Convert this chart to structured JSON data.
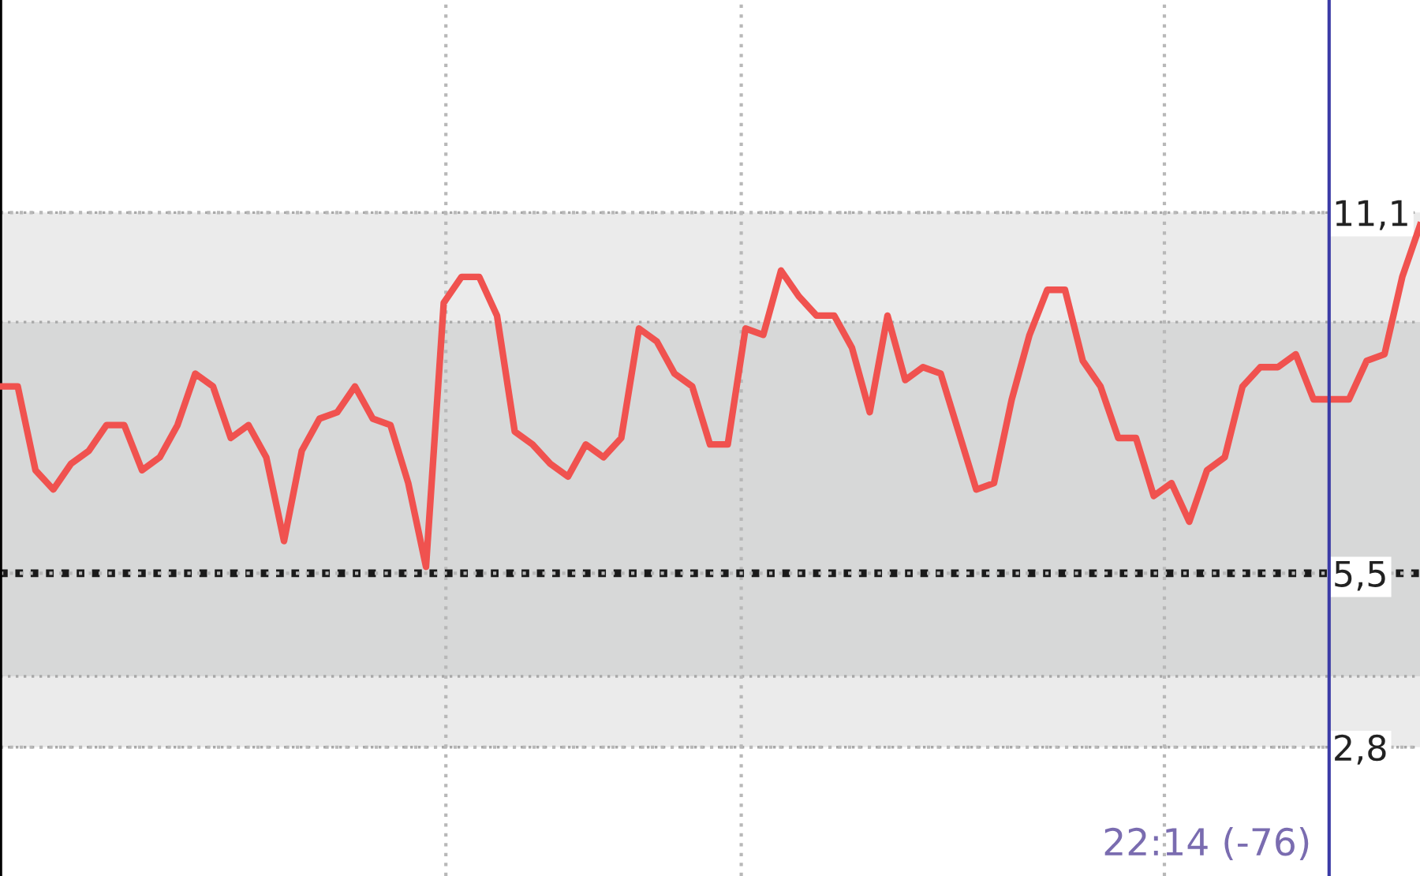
{
  "chart_data": {
    "type": "line",
    "categories": [
      null,
      null,
      null,
      null,
      null,
      null,
      null,
      null,
      null,
      null,
      null,
      null,
      null,
      null,
      null,
      null,
      null,
      null,
      null,
      null,
      null,
      null,
      null,
      null,
      null,
      null,
      null,
      null,
      null,
      null,
      null,
      null,
      null,
      null,
      null,
      null,
      null,
      null,
      null,
      null,
      null,
      null,
      null,
      null,
      null,
      null,
      null,
      null,
      null,
      null,
      null,
      null,
      null,
      null,
      null,
      null,
      null,
      null,
      null,
      null,
      null,
      null,
      null,
      null,
      null,
      null,
      null,
      null,
      null,
      null,
      null,
      null,
      null,
      null,
      null,
      null,
      null,
      null,
      null,
      null,
      null
    ],
    "series": [
      {
        "color": "#f0524f",
        "values": [
          8.4,
          8.4,
          7.1,
          6.8,
          7.2,
          7.4,
          7.8,
          7.8,
          7.1,
          7.3,
          7.8,
          8.6,
          8.4,
          7.6,
          7.8,
          7.3,
          6.0,
          7.4,
          7.9,
          8.0,
          8.4,
          7.9,
          7.8,
          6.9,
          5.6,
          9.7,
          10.1,
          10.1,
          9.5,
          7.7,
          7.5,
          7.2,
          7.0,
          7.5,
          7.3,
          7.6,
          9.3,
          9.1,
          8.6,
          8.4,
          7.5,
          7.5,
          9.3,
          9.2,
          10.2,
          9.8,
          9.5,
          9.5,
          9.0,
          8.0,
          9.5,
          8.5,
          8.7,
          8.6,
          7.7,
          6.8,
          6.9,
          8.2,
          9.2,
          9.9,
          9.9,
          8.8,
          8.4,
          7.6,
          7.6,
          6.7,
          6.9,
          6.3,
          7.1,
          7.3,
          8.4,
          8.7,
          8.7,
          8.9,
          8.2,
          8.2,
          8.2,
          8.8,
          8.9,
          10.1,
          10.9
        ]
      }
    ],
    "ylim": [
      0.8,
      14.4
    ],
    "yticks": [
      {
        "value": 11.1,
        "label": "11,1"
      },
      {
        "value": 5.5,
        "label": "5,5"
      },
      {
        "value": 2.8,
        "label": "2,8"
      }
    ],
    "tick_labels": "y",
    "grid": true,
    "marker": "none",
    "line_style": "solid",
    "bands": [
      {
        "axis": "y",
        "from": 2.8,
        "to": 11.1,
        "color": "#ebebeb"
      },
      {
        "axis": "y",
        "from": 3.9,
        "to": 9.4,
        "color": "#d7d8d8"
      }
    ],
    "ref_lines": [
      {
        "axis": "y",
        "value": 5.5,
        "color": "#1a1a1a",
        "line_style": "dotted"
      }
    ],
    "annotations": [
      "22:14 (-76)"
    ]
  }
}
